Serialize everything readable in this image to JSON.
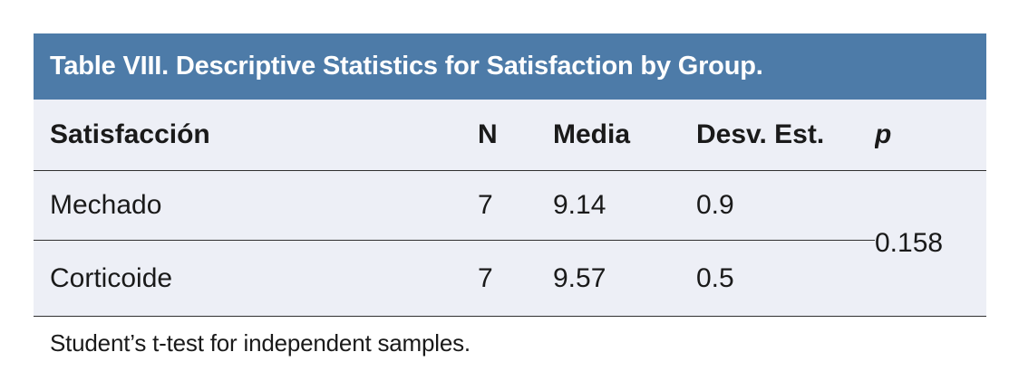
{
  "colors": {
    "title_bg": "#4d7ba8",
    "title_text": "#ffffff",
    "body_bg": "#edeff6",
    "rule": "#303030",
    "text": "#1a1a1a"
  },
  "table": {
    "title": "Table VIII. Descriptive Statistics for Satisfaction by Group.",
    "columns": [
      "Satisfacción",
      "N",
      "Media",
      "Desv. Est.",
      "p"
    ],
    "rows": [
      {
        "cells": [
          "Mechado",
          "7",
          "9.14",
          "0.9"
        ]
      },
      {
        "cells": [
          "Corticoide",
          "7",
          "9.57",
          "0.5"
        ]
      }
    ],
    "p_value": "0.158",
    "footnote": "Student’s t-test for independent samples."
  },
  "chart_data": {
    "type": "table",
    "title": "Table VIII. Descriptive Statistics for Satisfaction by Group.",
    "columns": [
      "Satisfacción",
      "N",
      "Media",
      "Desv. Est.",
      "p"
    ],
    "rows": [
      [
        "Mechado",
        7,
        9.14,
        0.9
      ],
      [
        "Corticoide",
        7,
        9.57,
        0.5
      ]
    ],
    "shared_p_value": 0.158,
    "notes": "p value 0.158 spans both group rows; footnote: Student’s t-test for independent samples."
  }
}
